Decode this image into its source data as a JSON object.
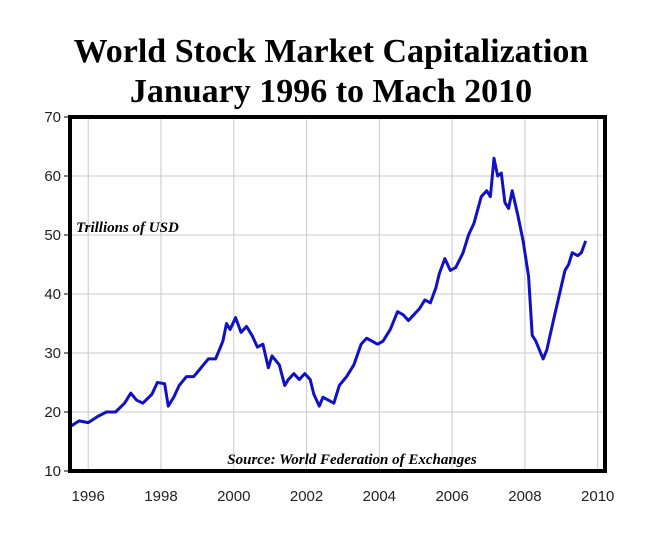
{
  "chart_data": {
    "type": "line",
    "title": "World Stock Market Capitalization",
    "subtitle": "January 1996 to Mach 2010",
    "annotations": [
      "Trillions of USD",
      "Source: World Federation of Exchanges"
    ],
    "color": "#1010c8",
    "grid": true,
    "xlim": [
      1996,
      2010.7
    ],
    "xticks": [
      {
        "value": 1996.5,
        "label": "1996"
      },
      {
        "value": 1998.5,
        "label": "1998"
      },
      {
        "value": 2000.5,
        "label": "2000"
      },
      {
        "value": 2002.5,
        "label": "2002"
      },
      {
        "value": 2004.5,
        "label": "2004"
      },
      {
        "value": 2006.5,
        "label": "2006"
      },
      {
        "value": 2008.5,
        "label": "2008"
      },
      {
        "value": 2010.5,
        "label": "2010"
      }
    ],
    "ylim": [
      10,
      70
    ],
    "yticks": [
      10,
      20,
      30,
      40,
      50,
      60,
      70
    ],
    "x": [
      1996.0,
      1996.25,
      1996.5,
      1996.75,
      1997.0,
      1997.25,
      1997.5,
      1997.67,
      1997.83,
      1998.0,
      1998.25,
      1998.4,
      1998.6,
      1998.7,
      1998.85,
      1999.0,
      1999.2,
      1999.4,
      1999.6,
      1999.8,
      2000.0,
      2000.2,
      2000.3,
      2000.4,
      2000.55,
      2000.7,
      2000.85,
      2001.0,
      2001.15,
      2001.3,
      2001.45,
      2001.55,
      2001.75,
      2001.9,
      2002.0,
      2002.15,
      2002.3,
      2002.45,
      2002.6,
      2002.7,
      2002.85,
      2002.95,
      2003.1,
      2003.25,
      2003.4,
      2003.6,
      2003.8,
      2004.0,
      2004.15,
      2004.3,
      2004.45,
      2004.6,
      2004.8,
      2005.0,
      2005.15,
      2005.3,
      2005.45,
      2005.6,
      2005.75,
      2005.9,
      2006.05,
      2006.15,
      2006.3,
      2006.45,
      2006.6,
      2006.8,
      2006.95,
      2007.1,
      2007.3,
      2007.45,
      2007.55,
      2007.65,
      2007.75,
      2007.85,
      2007.95,
      2008.05,
      2008.15,
      2008.3,
      2008.45,
      2008.6,
      2008.7,
      2008.8,
      2008.9,
      2009.0,
      2009.1,
      2009.3,
      2009.45,
      2009.6,
      2009.7,
      2009.8,
      2009.95,
      2010.05,
      2010.17
    ],
    "values": [
      17.5,
      18.5,
      18.2,
      19.2,
      20,
      20,
      21.5,
      23.2,
      22,
      21.5,
      23,
      25,
      24.8,
      21,
      22.5,
      24.5,
      26,
      26,
      27.5,
      29,
      29,
      32,
      35,
      34,
      36,
      33.5,
      34.5,
      33,
      31,
      31.5,
      27.5,
      29.5,
      28,
      24.5,
      25.5,
      26.5,
      25.5,
      26.5,
      25.5,
      23,
      21,
      22.5,
      22,
      21.5,
      24.5,
      26,
      28,
      31.5,
      32.5,
      32,
      31.5,
      32,
      34,
      37,
      36.5,
      35.5,
      36.5,
      37.5,
      39,
      38.5,
      41,
      43.5,
      46,
      44,
      44.5,
      47,
      50,
      52,
      56.5,
      57.5,
      56.5,
      63,
      60,
      60.5,
      55.5,
      54.5,
      57.5,
      53.5,
      49,
      43,
      33,
      32,
      30.5,
      29,
      30.5,
      36,
      40,
      44,
      45,
      47,
      46.5,
      47,
      49
    ]
  }
}
